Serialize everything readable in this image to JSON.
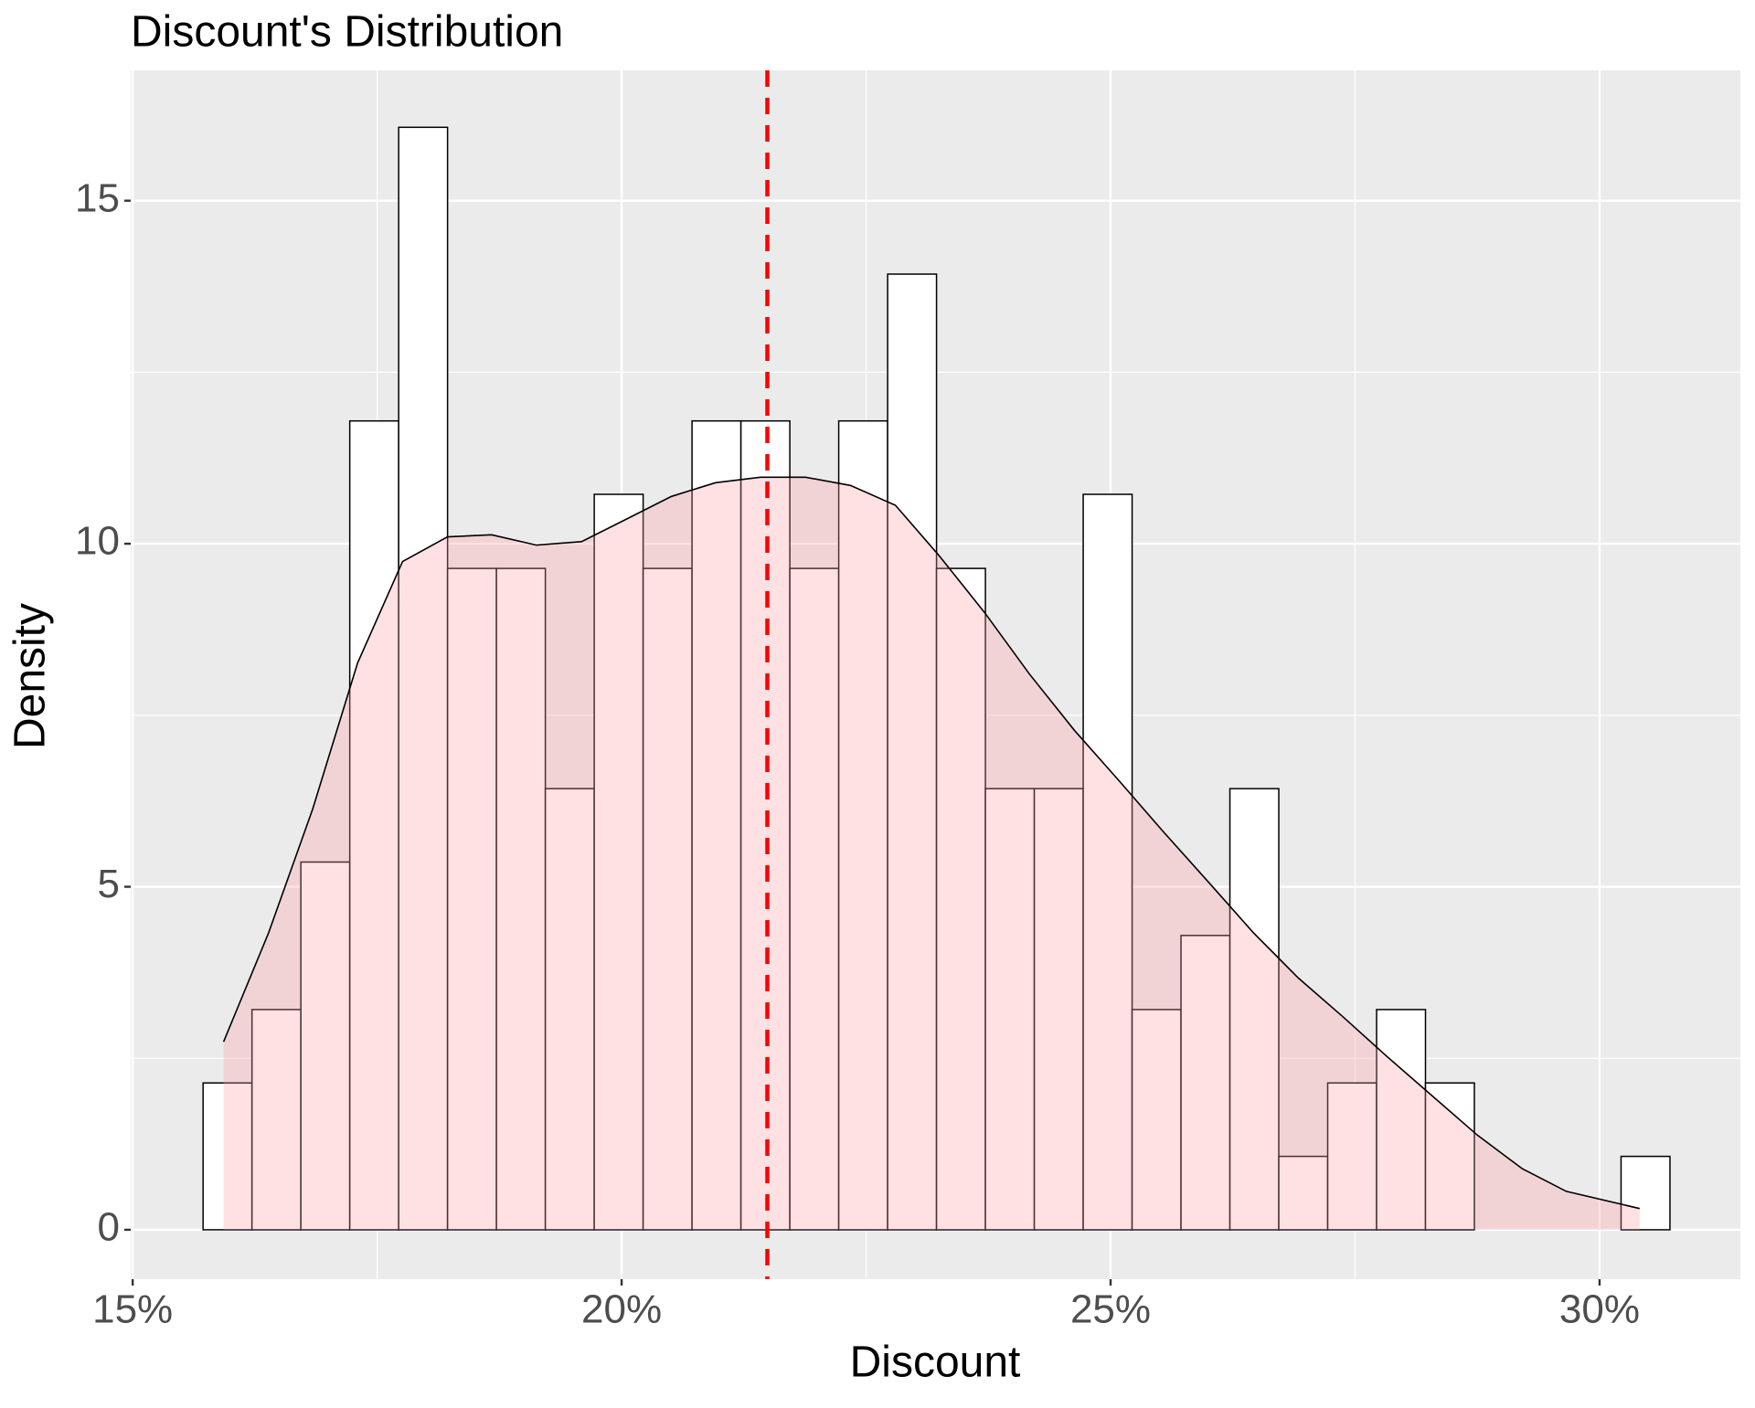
{
  "chart_data": {
    "type": "histogram",
    "title": "Discount's Distribution",
    "x_label": "Discount",
    "y_label": "Density",
    "bins": [
      15.72,
      16.22,
      16.72,
      17.22,
      17.72,
      18.22,
      18.72,
      19.22,
      19.72,
      20.22,
      20.72,
      21.22,
      21.72,
      22.22,
      22.72,
      23.22,
      23.72,
      24.22,
      24.72,
      25.22,
      25.72,
      26.22,
      26.72,
      27.22,
      27.72,
      28.22,
      28.72,
      29.22,
      29.72,
      30.22,
      30.72
    ],
    "values": [
      2.14,
      3.21,
      5.36,
      11.79,
      16.07,
      9.64,
      9.64,
      6.43,
      10.72,
      9.64,
      11.79,
      11.79,
      9.64,
      11.79,
      13.93,
      9.64,
      6.43,
      6.43,
      10.72,
      3.21,
      4.29,
      6.43,
      1.07,
      2.14,
      3.21,
      2.14,
      0,
      0,
      0,
      1.07
    ],
    "color": "#ffffff",
    "edgecolor": "#000000",
    "density_curve": {
      "x": [
        15.93,
        16.39,
        16.84,
        17.3,
        17.76,
        18.22,
        18.67,
        19.13,
        19.59,
        20.05,
        20.51,
        20.96,
        21.42,
        21.88,
        22.34,
        22.8,
        23.25,
        23.71,
        24.17,
        24.63,
        25.09,
        25.54,
        26.0,
        26.46,
        26.92,
        27.38,
        27.83,
        28.29,
        28.75,
        29.21,
        29.66,
        30.41
      ],
      "values": [
        2.74,
        4.33,
        6.13,
        8.26,
        9.74,
        10.1,
        10.13,
        9.98,
        10.03,
        10.36,
        10.69,
        10.89,
        10.97,
        10.97,
        10.85,
        10.56,
        9.82,
        9.0,
        8.1,
        7.28,
        6.54,
        5.8,
        5.07,
        4.33,
        3.67,
        3.1,
        2.52,
        1.95,
        1.38,
        0.89,
        0.56,
        0.31
      ],
      "color": "#000000",
      "fill": "#ff9aa2"
    },
    "mean_line": {
      "value": 21.49,
      "color": "#ff0000"
    },
    "xlim": [
      14.98,
      31.44
    ],
    "ylim": [
      -0.72,
      16.9
    ],
    "xticks": [
      {
        "value": 15,
        "label": "15%"
      },
      {
        "value": 20,
        "label": "20%"
      },
      {
        "value": 25,
        "label": "25%"
      },
      {
        "value": 30,
        "label": "30%"
      }
    ],
    "yticks": [
      0,
      5,
      10,
      15
    ],
    "grid": true
  }
}
